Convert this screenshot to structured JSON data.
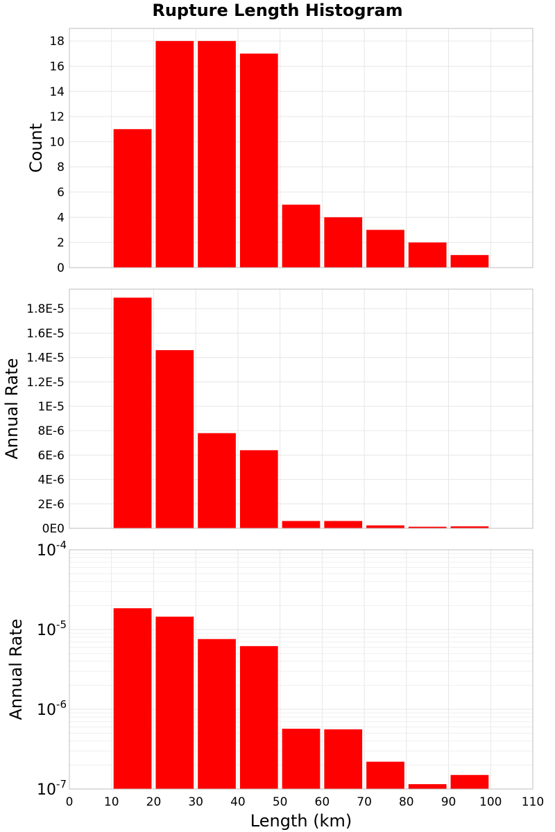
{
  "figure": {
    "title": "Rupture Length Histogram",
    "bar_color": "#ff0000",
    "grid_color": "#e6e6e6",
    "frame_color": "#bdbdbd"
  },
  "chart_data": [
    {
      "type": "bar",
      "title": "Rupture Length Histogram",
      "ylabel": "Count",
      "xlim": [
        0,
        110
      ],
      "ylim": [
        0,
        19
      ],
      "y_scale": "linear",
      "grid": true,
      "x_tick_labels_shown": false,
      "bin_width": 10,
      "x": [
        15,
        25,
        35,
        45,
        55,
        65,
        75,
        85,
        95
      ],
      "values": [
        11,
        18,
        18,
        17,
        5,
        4,
        3,
        2,
        1
      ],
      "y_ticks": [
        0,
        2,
        4,
        6,
        8,
        10,
        12,
        14,
        16,
        18
      ],
      "y_tick_labels": [
        "0",
        "2",
        "4",
        "6",
        "8",
        "10",
        "12",
        "14",
        "16",
        "18"
      ]
    },
    {
      "type": "bar",
      "ylabel": "Annual Rate",
      "xlim": [
        0,
        110
      ],
      "ylim": [
        0,
        1.96e-05
      ],
      "y_scale": "linear",
      "grid": true,
      "x_tick_labels_shown": false,
      "bin_width": 10,
      "x": [
        15,
        25,
        35,
        45,
        55,
        65,
        75,
        85,
        95
      ],
      "values": [
        1.89e-05,
        1.46e-05,
        7.8e-06,
        6.4e-06,
        6e-07,
        6e-07,
        2.4e-07,
        1.3e-07,
        1.6e-07
      ],
      "y_ticks": [
        0,
        2e-06,
        4e-06,
        6e-06,
        8e-06,
        1e-05,
        1.2e-05,
        1.4e-05,
        1.6e-05,
        1.8e-05
      ],
      "y_tick_labels": [
        "0E0",
        "2E-6",
        "4E-6",
        "6E-6",
        "8E-6",
        "1E-5",
        "1.2E-5",
        "1.4E-5",
        "1.6E-5",
        "1.8E-5"
      ]
    },
    {
      "type": "bar",
      "ylabel": "Annual Rate",
      "xlabel": "Length (km)",
      "xlim": [
        0,
        110
      ],
      "ylim": [
        1e-07,
        0.0001
      ],
      "y_scale": "log",
      "grid": true,
      "x_tick_labels_shown": true,
      "bin_width": 10,
      "x": [
        15,
        25,
        35,
        45,
        55,
        65,
        75,
        85,
        95
      ],
      "values": [
        1.85e-05,
        1.45e-05,
        7.6e-06,
        6.2e-06,
        5.7e-07,
        5.6e-07,
        2.2e-07,
        1.15e-07,
        1.5e-07
      ],
      "y_ticks": [
        1e-07,
        1e-06,
        1e-05,
        0.0001
      ],
      "y_tick_labels": [
        {
          "base": "10",
          "exp": "-7"
        },
        {
          "base": "10",
          "exp": "-6"
        },
        {
          "base": "10",
          "exp": "-5"
        },
        {
          "base": "10",
          "exp": "-4"
        }
      ],
      "x_ticks": [
        0,
        10,
        20,
        30,
        40,
        50,
        60,
        70,
        80,
        90,
        100,
        110
      ],
      "x_tick_labels": [
        "0",
        "10",
        "20",
        "30",
        "40",
        "50",
        "60",
        "70",
        "80",
        "90",
        "100",
        "110"
      ]
    }
  ]
}
